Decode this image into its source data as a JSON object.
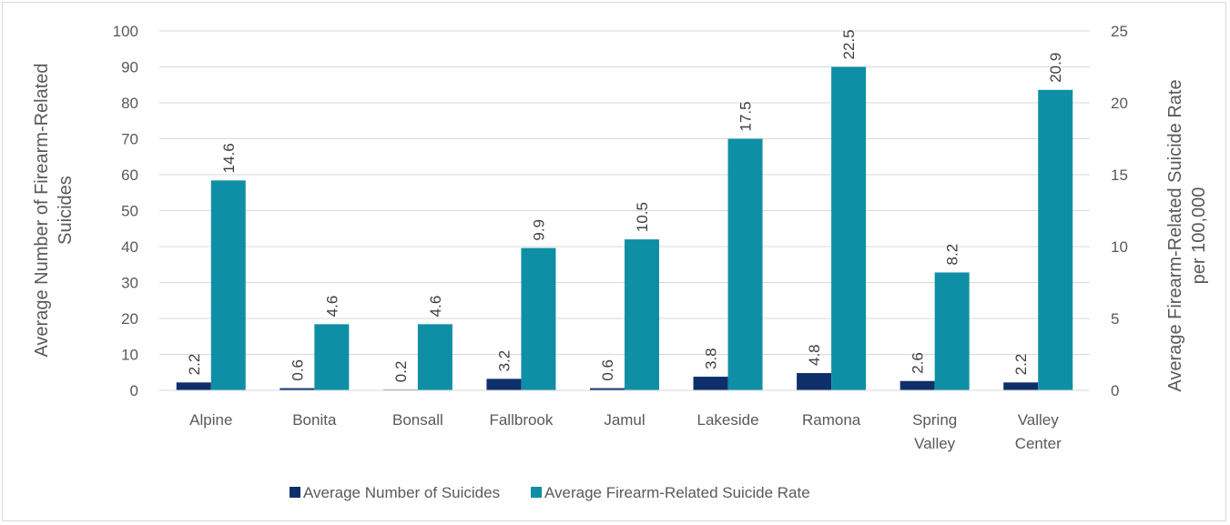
{
  "chart_data": {
    "type": "bar",
    "categories": [
      "Alpine",
      "Bonita",
      "Bonsall",
      "Fallbrook",
      "Jamul",
      "Lakeside",
      "Ramona",
      "Spring Valley",
      "Valley Center"
    ],
    "series": [
      {
        "name": "Average Number of Suicides",
        "axis": "left",
        "color": "#0f2f6b",
        "values": [
          2.2,
          0.6,
          0.2,
          3.2,
          0.6,
          3.8,
          4.8,
          2.6,
          2.2
        ]
      },
      {
        "name": "Average Firearm-Related Suicide Rate",
        "axis": "right",
        "color": "#0f8fa6",
        "values": [
          14.6,
          4.6,
          4.6,
          9.9,
          10.5,
          17.5,
          22.5,
          8.2,
          20.9
        ]
      }
    ],
    "ylabel": "Average Number of Firearm-Related Suicides",
    "ylabel2": "Average Firearm-Related Suicide Rate per 100,000",
    "ylim": [
      0,
      100
    ],
    "ylim2": [
      0,
      25
    ],
    "yticks": [
      0,
      10,
      20,
      30,
      40,
      50,
      60,
      70,
      80,
      90,
      100
    ],
    "yticks2": [
      0,
      5,
      10,
      15,
      20,
      25
    ],
    "grid": true,
    "legend_position": "bottom"
  }
}
